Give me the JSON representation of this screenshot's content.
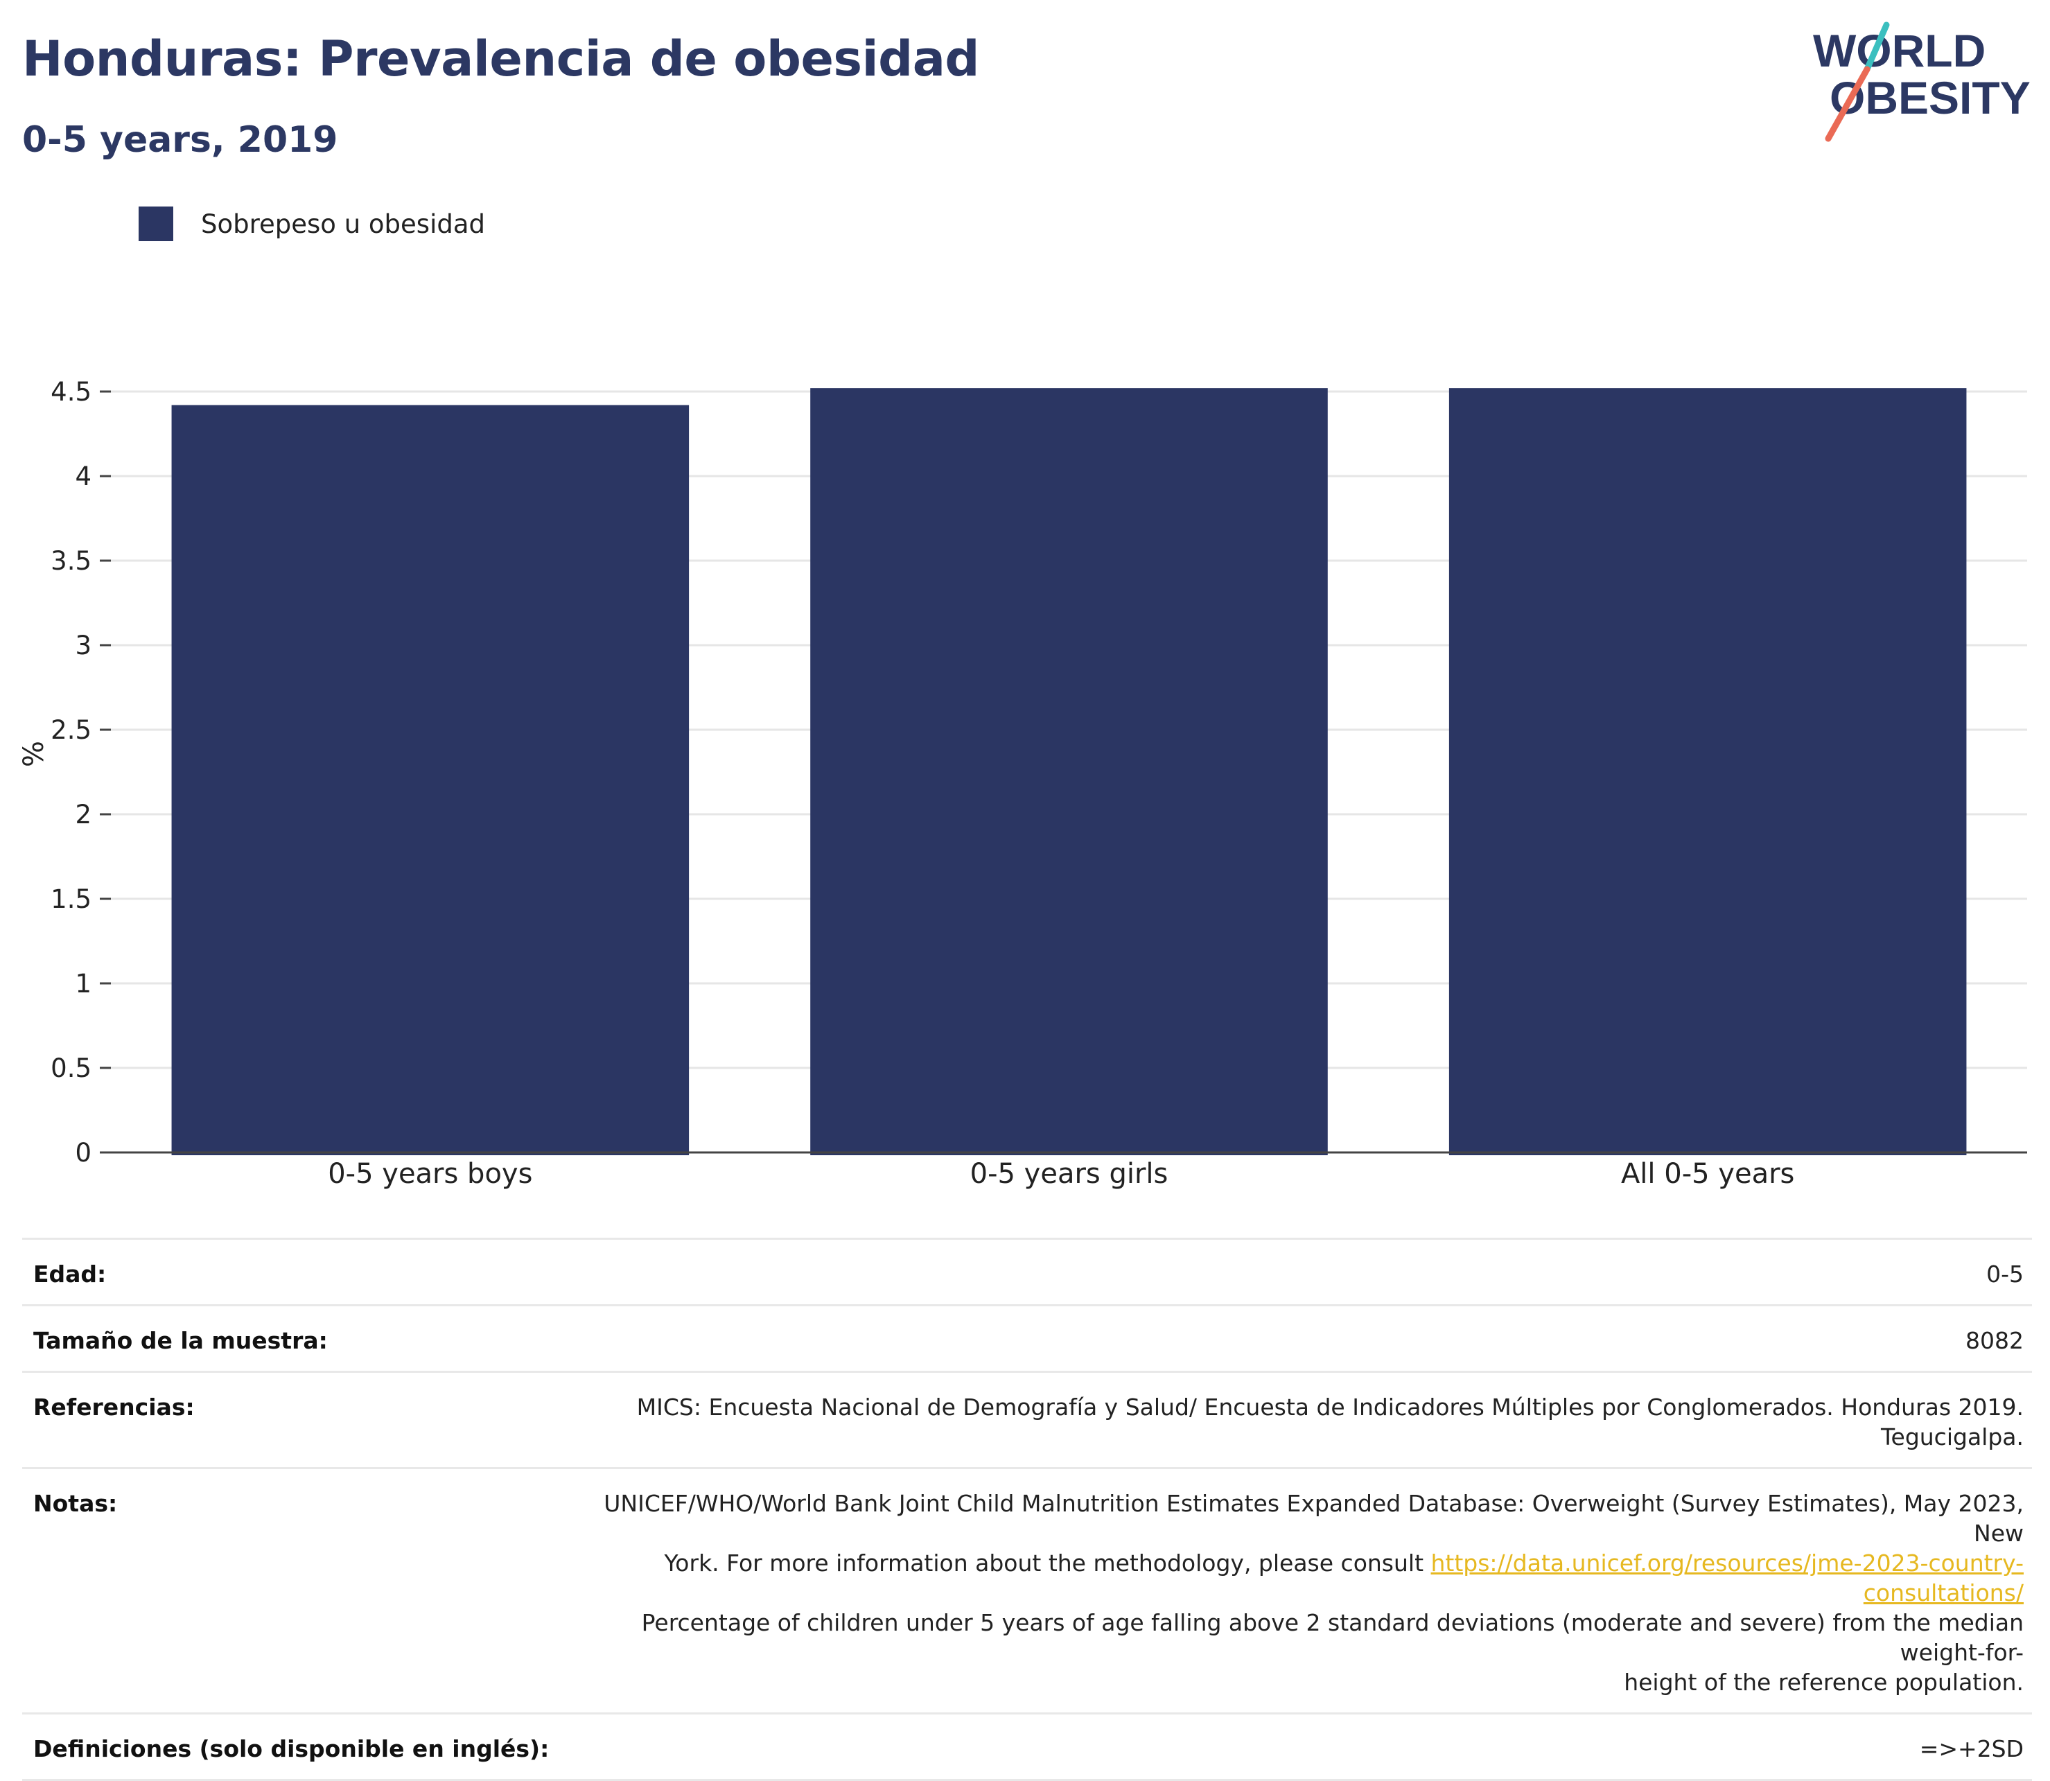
{
  "header": {
    "title": "Honduras: Prevalencia de obesidad",
    "subtitle": "0-5 years, 2019"
  },
  "logo": {
    "line1": "WORLD",
    "line2": "OBESITY"
  },
  "colors": {
    "bar": "#2b3663",
    "title": "#2c3863",
    "link": "#e6b820",
    "logo_teal": "#3bbfbf",
    "logo_coral": "#ea6a55"
  },
  "chart_data": {
    "type": "bar",
    "categories": [
      "0-5 years boys",
      "0-5 years girls",
      "All 0-5 years"
    ],
    "series": [
      {
        "name": "Sobrepeso u obesidad",
        "values": [
          4.42,
          4.52,
          4.52
        ]
      }
    ],
    "ylabel": "%",
    "xlabel": "",
    "ylim": [
      0,
      4.5
    ],
    "yticks": [
      0,
      0.5,
      1,
      1.5,
      2,
      2.5,
      3,
      3.5,
      4,
      4.5
    ],
    "ytick_labels": [
      "0",
      "0.5",
      "1",
      "1.5",
      "2",
      "2.5",
      "3",
      "3.5",
      "4",
      "4.5"
    ],
    "grid": true,
    "legend_position": "top-left"
  },
  "meta": {
    "age_label": "Edad:",
    "age_value": "0-5",
    "sample_label": "Tamaño de la muestra:",
    "sample_value": "8082",
    "refs_label": "Referencias:",
    "refs_value": "MICS: Encuesta Nacional de Demografía y Salud/ Encuesta de Indicadores Múltiples por Conglomerados. Honduras 2019. Tegucigalpa.",
    "notes_label": "Notas:",
    "notes_line1": "UNICEF/WHO/World Bank Joint Child Malnutrition Estimates Expanded Database: Overweight (Survey Estimates), May 2023, New",
    "notes_line2_prefix": "York. For more information about the methodology, please consult ",
    "notes_link": "https://data.unicef.org/resources/jme-2023-country-consultations/",
    "notes_line3": "Percentage of children under 5 years of age falling above 2 standard deviations (moderate and severe) from the median weight-for-",
    "notes_line4": "height of the reference population.",
    "defs_label": "Definiciones (solo disponible en inglés):",
    "defs_value": "=>+2SD"
  }
}
